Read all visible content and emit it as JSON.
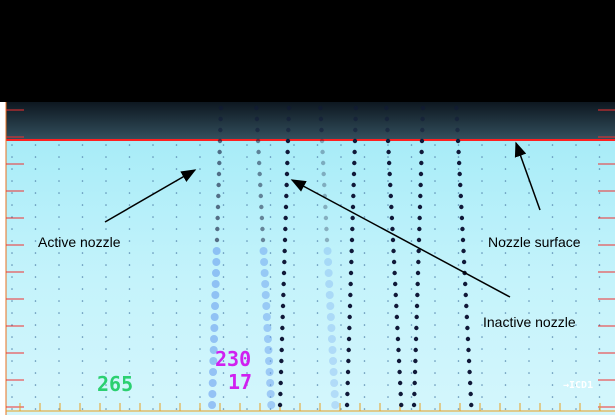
{
  "annotations": {
    "active": "Active nozzle",
    "surface": "Nozzle surface",
    "inactive": "Inactive nozzle"
  },
  "overlay": {
    "left_number": "265",
    "top_number": "230",
    "bottom_number": "17",
    "corner_label": "→ICD1"
  }
}
